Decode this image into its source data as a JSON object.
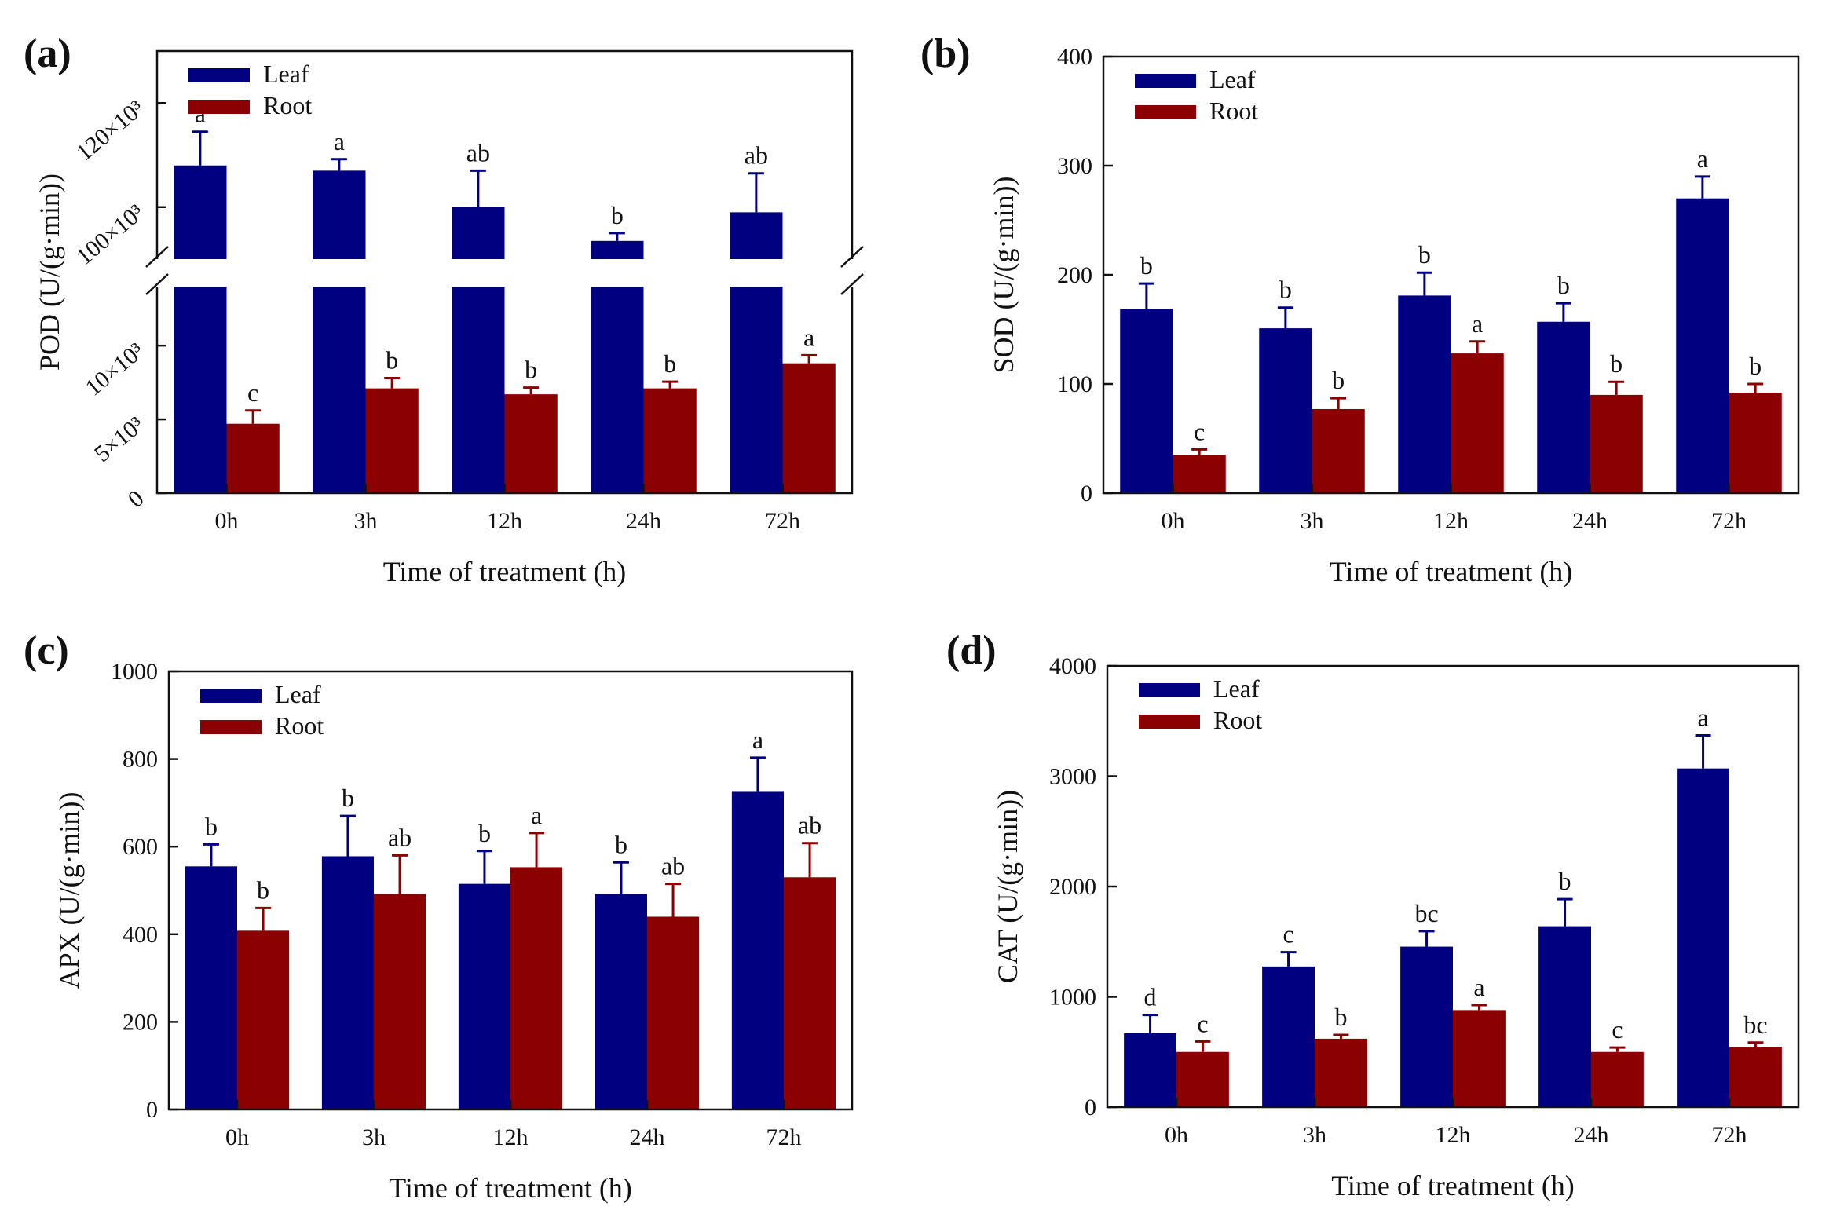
{
  "figure": {
    "panels": [
      "(a)",
      "(b)",
      "(c)",
      "(d)"
    ]
  },
  "colors": {
    "leaf": "#000080",
    "root": "#8B0000",
    "axis": "#111111",
    "background": "#ffffff"
  },
  "chart_data": [
    {
      "panel": "(a)",
      "type": "bar",
      "title": "",
      "xlabel": "Time of treatment (h)",
      "ylabel": "POD (U/(g·min))",
      "categories": [
        "0h",
        "3h",
        "12h",
        "24h",
        "72h"
      ],
      "axis_break": true,
      "ylim_lower": [
        0,
        14000
      ],
      "ylim_upper": [
        90000,
        130000
      ],
      "yticks_lower": [
        0,
        5000,
        10000
      ],
      "ytick_labels_lower": [
        "0",
        "5×10³",
        "10×10³"
      ],
      "yticks_upper": [
        100000,
        120000
      ],
      "ytick_labels_upper": [
        "100×10³",
        "120×10³"
      ],
      "series": [
        {
          "name": "Leaf",
          "values": [
            108000,
            107000,
            100000,
            93500,
            99000
          ],
          "errors": [
            6500,
            2200,
            7000,
            1500,
            7500
          ],
          "letters": [
            "a",
            "a",
            "ab",
            "b",
            "ab"
          ]
        },
        {
          "name": "Root",
          "values": [
            4700,
            7100,
            6700,
            7100,
            8800
          ],
          "errors": [
            900,
            700,
            450,
            450,
            550
          ],
          "letters": [
            "c",
            "b",
            "b",
            "b",
            "a"
          ]
        }
      ],
      "legend_position": "top-left"
    },
    {
      "panel": "(b)",
      "type": "bar",
      "title": "",
      "xlabel": "Time of treatment (h)",
      "ylabel": "SOD (U/(g·min))",
      "categories": [
        "0h",
        "3h",
        "12h",
        "24h",
        "72h"
      ],
      "ylim": [
        0,
        400
      ],
      "yticks": [
        0,
        100,
        200,
        300,
        400
      ],
      "series": [
        {
          "name": "Leaf",
          "values": [
            169,
            151,
            181,
            157,
            270
          ],
          "errors": [
            23,
            19,
            21,
            17,
            20
          ],
          "letters": [
            "b",
            "b",
            "b",
            "b",
            "a"
          ]
        },
        {
          "name": "Root",
          "values": [
            35,
            77,
            128,
            90,
            92
          ],
          "errors": [
            5,
            10,
            11,
            12,
            8
          ],
          "letters": [
            "c",
            "b",
            "a",
            "b",
            "b"
          ]
        }
      ],
      "legend_position": "top-left"
    },
    {
      "panel": "(c)",
      "type": "bar",
      "title": "",
      "xlabel": "Time of treatment (h)",
      "ylabel": "APX (U/(g·min))",
      "categories": [
        "0h",
        "3h",
        "12h",
        "24h",
        "72h"
      ],
      "ylim": [
        0,
        1000
      ],
      "yticks": [
        0,
        200,
        400,
        600,
        800,
        1000
      ],
      "series": [
        {
          "name": "Leaf",
          "values": [
            555,
            578,
            515,
            492,
            725
          ],
          "errors": [
            50,
            92,
            75,
            72,
            78
          ],
          "letters": [
            "b",
            "b",
            "b",
            "b",
            "a"
          ]
        },
        {
          "name": "Root",
          "values": [
            408,
            492,
            553,
            440,
            530
          ],
          "errors": [
            52,
            88,
            78,
            75,
            78
          ],
          "letters": [
            "b",
            "ab",
            "a",
            "ab",
            "ab"
          ]
        }
      ],
      "legend_position": "top-left"
    },
    {
      "panel": "(d)",
      "type": "bar",
      "title": "",
      "xlabel": "Time of treatment (h)",
      "ylabel": "CAT (U/(g·min))",
      "categories": [
        "0h",
        "3h",
        "12h",
        "24h",
        "72h"
      ],
      "ylim": [
        0,
        4000
      ],
      "yticks": [
        0,
        1000,
        2000,
        3000,
        4000
      ],
      "series": [
        {
          "name": "Leaf",
          "values": [
            670,
            1275,
            1455,
            1640,
            3070
          ],
          "errors": [
            165,
            130,
            140,
            245,
            300
          ],
          "letters": [
            "d",
            "c",
            "bc",
            "b",
            "a"
          ]
        },
        {
          "name": "Root",
          "values": [
            500,
            620,
            880,
            500,
            545
          ],
          "errors": [
            95,
            35,
            45,
            40,
            40
          ],
          "letters": [
            "c",
            "b",
            "a",
            "c",
            "bc"
          ]
        }
      ],
      "legend_position": "top-left"
    }
  ]
}
